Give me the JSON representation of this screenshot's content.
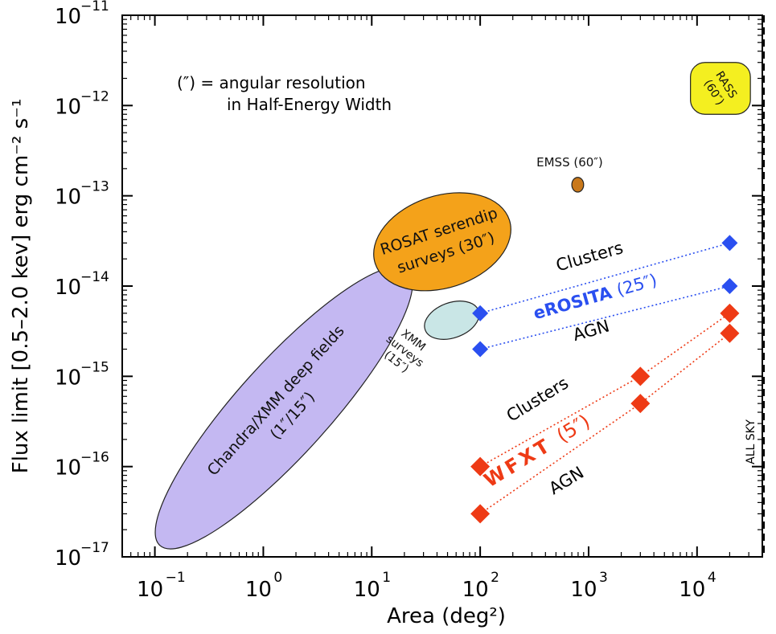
{
  "chart_data": {
    "type": "scatter",
    "x_scale": "log",
    "y_scale": "log",
    "xlim": [
      0.05,
      40000
    ],
    "ylim": [
      1e-17,
      1e-11
    ],
    "xlabel": "Area (deg²)",
    "ylabel": "Flux limit [0.5–2.0 kev] erg cm⁻² s⁻¹",
    "x_ticks": [
      {
        "value": 0.1,
        "base": "10",
        "exp": "−1"
      },
      {
        "value": 1,
        "base": "10",
        "exp": "0"
      },
      {
        "value": 10,
        "base": "10",
        "exp": "1"
      },
      {
        "value": 100,
        "base": "10",
        "exp": "2"
      },
      {
        "value": 1000,
        "base": "10",
        "exp": "3"
      },
      {
        "value": 10000,
        "base": "10",
        "exp": "4"
      }
    ],
    "y_ticks": [
      {
        "value": 1e-17,
        "base": "10",
        "exp": "−17"
      },
      {
        "value": 1e-16,
        "base": "10",
        "exp": "−16"
      },
      {
        "value": 1e-15,
        "base": "10",
        "exp": "−15"
      },
      {
        "value": 1e-14,
        "base": "10",
        "exp": "−14"
      },
      {
        "value": 1e-13,
        "base": "10",
        "exp": "−13"
      },
      {
        "value": 1e-12,
        "base": "10",
        "exp": "−12"
      },
      {
        "value": 1e-11,
        "base": "10",
        "exp": "−11"
      }
    ],
    "note": [
      "(″) = angular resolution",
      "in Half-Energy Width"
    ],
    "regions": [
      {
        "label_lines": [
          "Chandra/XMM deep fields",
          "(1″/15″)"
        ],
        "x_range": [
          0.08,
          30
        ],
        "y_range": [
          2e-17,
          1e-14
        ],
        "color": "#c4b8f2"
      },
      {
        "label_lines": [
          "XMM",
          "surveys",
          "(15″)"
        ],
        "x_range": [
          30,
          100
        ],
        "y_range": [
          2.5e-15,
          7e-15
        ],
        "color": "#c9e6e6"
      },
      {
        "label_lines": [
          "ROSAT serendip",
          "surveys (30″)"
        ],
        "x_range": [
          10,
          200
        ],
        "y_range": [
          8e-15,
          1.2e-13
        ],
        "color": "#f4a21a"
      },
      {
        "label_lines": [
          "EMSS (60″)"
        ],
        "x_range": [
          700,
          900
        ],
        "y_range": [
          1.1e-13,
          1.6e-13
        ],
        "color": "#c9781a"
      },
      {
        "label_lines": [
          "RASS",
          "(60″)"
        ],
        "x_range": [
          9000,
          30000
        ],
        "y_range": [
          8e-13,
          3e-12
        ],
        "color": "#f4ef20"
      }
    ],
    "series": [
      {
        "name": "eROSITA",
        "resolution": "(25″)",
        "subset": "Clusters",
        "color": "#2a4ff0",
        "x": [
          100,
          20000
        ],
        "y": [
          5e-15,
          3e-14
        ]
      },
      {
        "name": "eROSITA",
        "resolution": "(25″)",
        "subset": "AGN",
        "color": "#2a4ff0",
        "x": [
          100,
          20000
        ],
        "y": [
          2e-15,
          1e-14
        ]
      },
      {
        "name": "WFXT",
        "resolution": "(5″)",
        "subset": "Clusters",
        "color": "#ee3a15",
        "x": [
          100,
          3000,
          20000
        ],
        "y": [
          1e-16,
          1e-15,
          5e-15
        ]
      },
      {
        "name": "WFXT",
        "resolution": "(5″)",
        "subset": "AGN",
        "color": "#ee3a15",
        "x": [
          100,
          3000,
          20000
        ],
        "y": [
          3e-17,
          5e-16,
          3e-15
        ]
      }
    ],
    "vertical_line": {
      "x": 41253,
      "label": "ALL SKY"
    }
  }
}
